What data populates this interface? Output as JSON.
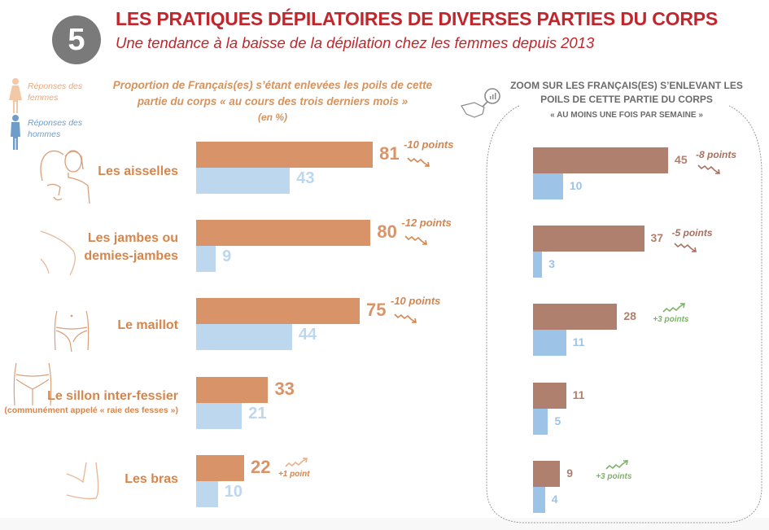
{
  "header": {
    "badge_number": "5",
    "title": "LES PRATIQUES DÉPILATOIRES DE DIVERSES PARTIES DU CORPS",
    "subtitle": "Une tendance à la baisse de la dépilation chez les femmes depuis 2013"
  },
  "legend": {
    "women": {
      "label": "Réponses des femmes",
      "icon": "female-figure-icon",
      "color": "#f2c8a6"
    },
    "men": {
      "label": "Réponses des hommes",
      "icon": "male-figure-icon",
      "color": "#6f9dc9"
    }
  },
  "colors": {
    "women_main": "#d89468",
    "men_main": "#bdd7ee",
    "women_zoom": "#b0806f",
    "men_zoom": "#9dc3e6",
    "trend_down": "#d4864e",
    "trend_down_zoom": "#a8705e",
    "trend_up_green": "#7fb26a",
    "title_red": "#c0262c"
  },
  "chart_data": [
    {
      "type": "bar",
      "orientation": "horizontal",
      "title": "Proportion de Français(es) s’étant enlevées les poils de cette partie du corps « au cours des trois derniers mois »",
      "unit": "(en %)",
      "categories": [
        {
          "label": "Les aisselles",
          "note": "",
          "icon": "armpit-icon"
        },
        {
          "label": "Les jambes ou demies-jambes",
          "note": "",
          "icon": "leg-icon"
        },
        {
          "label": "Le maillot",
          "note": "",
          "icon": "bikini-area-icon"
        },
        {
          "label": "Le sillon inter-fessier",
          "note": "(communément appelé « raie des fesses »)",
          "icon": "buttocks-icon"
        },
        {
          "label": "Les bras",
          "note": "",
          "icon": "arm-icon"
        }
      ],
      "series": [
        {
          "name": "Réponses des femmes",
          "values": [
            81,
            80,
            75,
            33,
            22
          ]
        },
        {
          "name": "Réponses des hommes",
          "values": [
            43,
            9,
            44,
            21,
            10
          ]
        }
      ],
      "trends_women": [
        "-10 points",
        "-12 points",
        "-10 points",
        "",
        "+1 point"
      ],
      "trend_direction": [
        "down",
        "down",
        "down",
        "",
        "up"
      ],
      "xlim": [
        0,
        100
      ]
    },
    {
      "type": "bar",
      "orientation": "horizontal",
      "title": "ZOOM SUR LES FRANÇAIS(ES) S’ENLEVANT LES POILS DE CETTE PARTIE DU CORPS",
      "subtitle": "« AU MOINS UNE FOIS PAR SEMAINE »",
      "icon": "magnifier-hand-icon",
      "categories": [
        "Les aisselles",
        "Les jambes ou demies-jambes",
        "Le maillot",
        "Le sillon inter-fessier",
        "Les bras"
      ],
      "series": [
        {
          "name": "Réponses des femmes",
          "values": [
            45,
            37,
            28,
            11,
            9
          ]
        },
        {
          "name": "Réponses des hommes",
          "values": [
            10,
            3,
            11,
            5,
            4
          ]
        }
      ],
      "trends_women": [
        "-8 points",
        "-5 points",
        "+3 points",
        "",
        "+3 points"
      ],
      "trend_direction": [
        "down",
        "down",
        "up",
        "",
        "up"
      ],
      "xlim": [
        0,
        50
      ]
    }
  ]
}
